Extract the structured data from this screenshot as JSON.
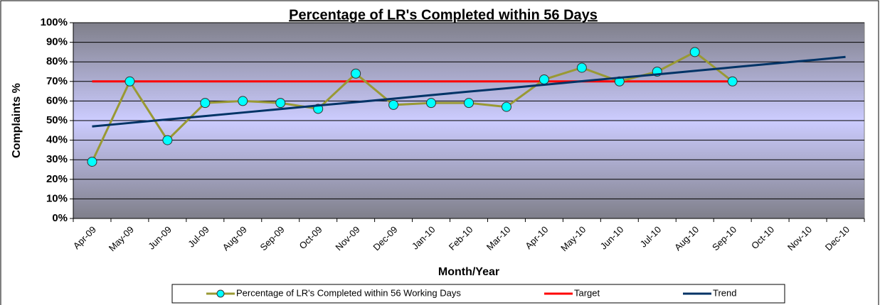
{
  "chart_data": {
    "type": "line",
    "title": "Percentage of LR's Completed within 56 Days",
    "x_label": "Month/Year",
    "y_label": "Complaints %",
    "categories": [
      "Apr-09",
      "May-09",
      "Jun-09",
      "Jul-09",
      "Aug-09",
      "Sep-09",
      "Oct-09",
      "Nov-09",
      "Dec-09",
      "Jan-10",
      "Feb-10",
      "Mar-10",
      "Apr-10",
      "May-10",
      "Jun-10",
      "Jul-10",
      "Aug-10",
      "Sep-10",
      "Oct-10",
      "Nov-10",
      "Dec-10"
    ],
    "series": [
      {
        "name": "Percentage of LR's Completed within 56 Working Days",
        "color": "#999933",
        "marker_color": "#00ffff",
        "values": [
          29,
          70,
          40,
          59,
          60,
          59,
          56,
          74,
          58,
          59,
          59,
          57,
          71,
          77,
          70,
          75,
          85,
          70,
          null,
          null,
          null
        ]
      },
      {
        "name": "Target",
        "color": "#ff0000",
        "values": [
          70,
          70,
          70,
          70,
          70,
          70,
          70,
          70,
          70,
          70,
          70,
          70,
          70,
          70,
          70,
          70,
          70,
          70,
          null,
          null,
          null
        ]
      },
      {
        "name": "Trend",
        "color": "#003366",
        "values": [
          47,
          48.8,
          50.6,
          52.3,
          54.1,
          55.9,
          57.7,
          59.4,
          61.2,
          63,
          64.8,
          66.5,
          68.3,
          70.1,
          71.9,
          73.6,
          75.4,
          77.2,
          79,
          80.7,
          82.5
        ]
      }
    ],
    "ylim": [
      0,
      100
    ],
    "yticks": [
      {
        "value": 0,
        "label": "0%"
      },
      {
        "value": 10,
        "label": "10%"
      },
      {
        "value": 20,
        "label": "20%"
      },
      {
        "value": 30,
        "label": "30%"
      },
      {
        "value": 40,
        "label": "40%"
      },
      {
        "value": 50,
        "label": "50%"
      },
      {
        "value": 60,
        "label": "60%"
      },
      {
        "value": 70,
        "label": "70%"
      },
      {
        "value": 80,
        "label": "80%"
      },
      {
        "value": 90,
        "label": "90%"
      },
      {
        "value": 100,
        "label": "100%"
      }
    ],
    "grid": true,
    "legend": "bottom"
  }
}
